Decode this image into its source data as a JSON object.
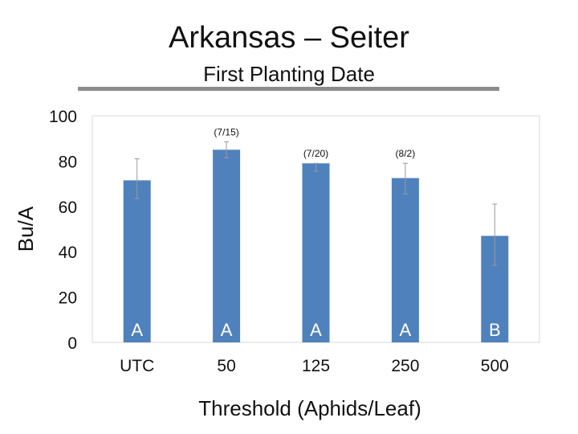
{
  "page": {
    "title": "Arkansas – Seiter",
    "subtitle": "First Planting Date"
  },
  "chart_data": {
    "type": "bar",
    "title": "",
    "xlabel": "Threshold (Aphids/Leaf)",
    "ylabel": "Bu/A",
    "categories": [
      "UTC",
      "50",
      "125",
      "250",
      "500"
    ],
    "values": [
      71.5,
      85,
      79,
      72.5,
      47
    ],
    "error_low": [
      63.5,
      81.5,
      75.5,
      65.5,
      34
    ],
    "error_high": [
      81,
      88.5,
      79,
      79,
      61
    ],
    "bar_labels": [
      "A",
      "A",
      "A",
      "A",
      "B"
    ],
    "annotations": [
      "",
      "(7/15)",
      "(7/20)",
      "(8/2)",
      ""
    ],
    "ylim": [
      0,
      100
    ],
    "yticks": [
      0,
      20,
      40,
      60,
      80,
      100
    ],
    "grid": false,
    "bar_color": "#4f81bd"
  }
}
